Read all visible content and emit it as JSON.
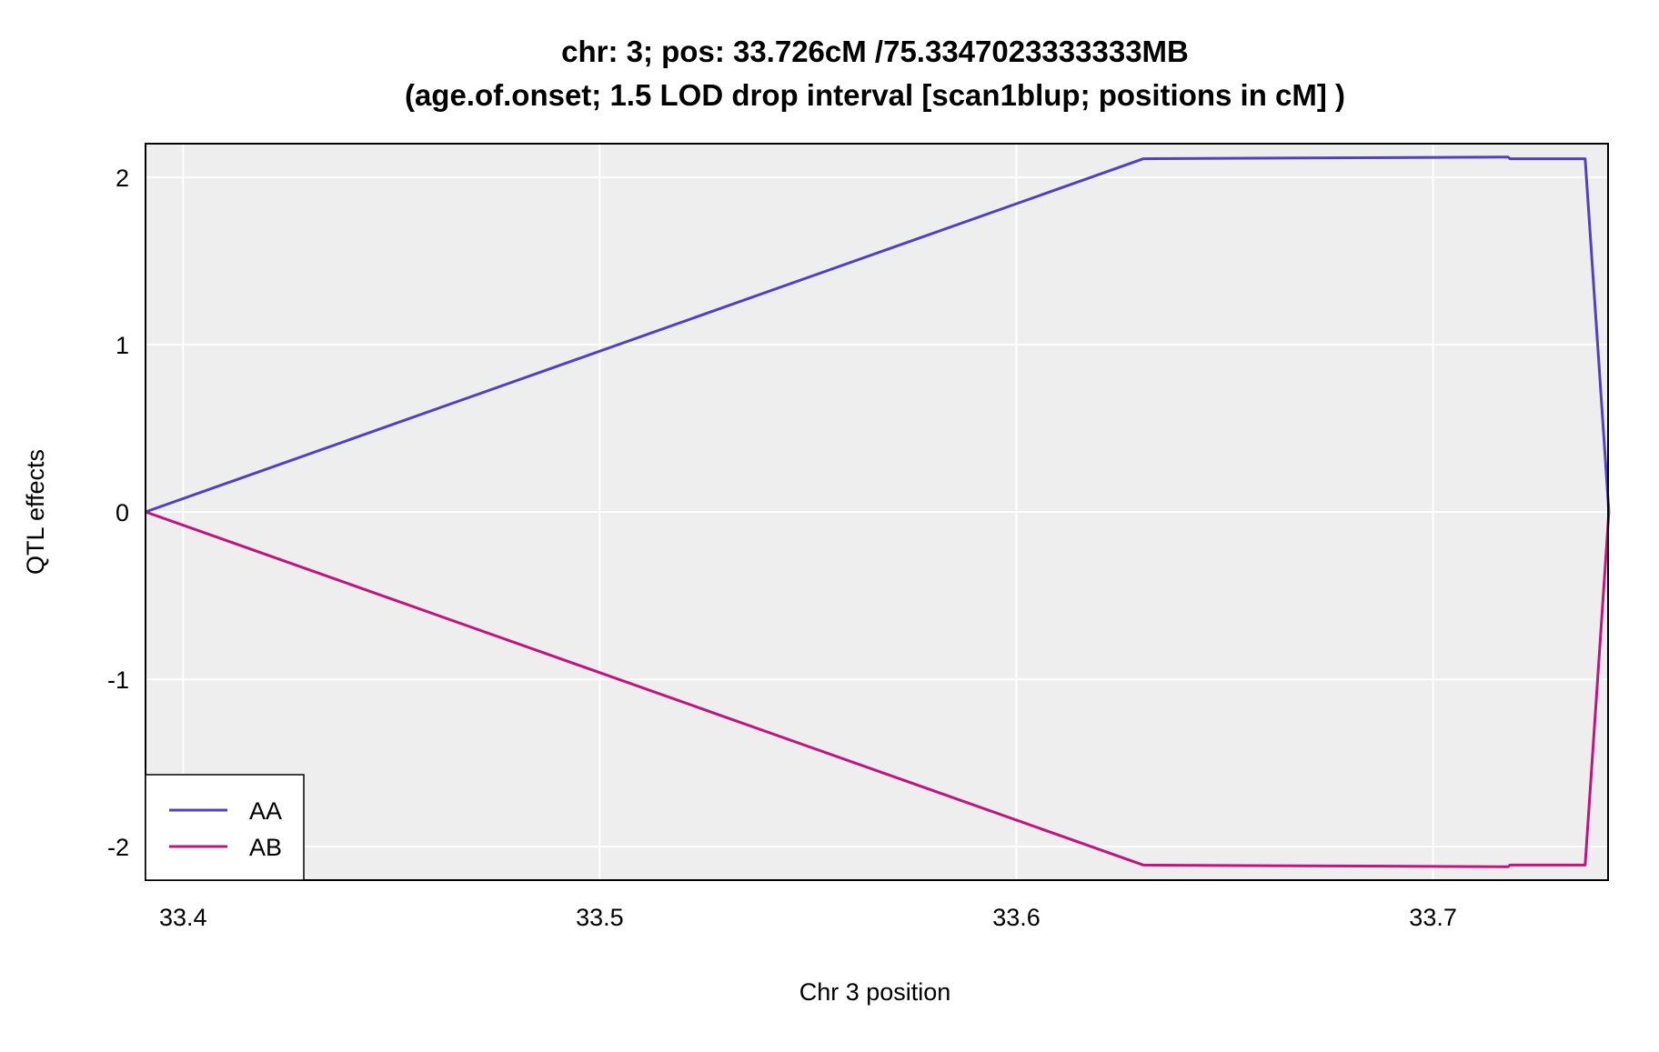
{
  "chart_data": {
    "type": "line",
    "title_line1": "chr: 3; pos: 33.726cM /75.3347023333333MB",
    "title_line2": "(age.of.onset; 1.5 LOD drop interval [scan1blup; positions in cM] )",
    "xlabel": "Chr 3 position",
    "ylabel": "QTL effects",
    "xlim": [
      33.391,
      33.742
    ],
    "ylim": [
      -2.2,
      2.2
    ],
    "xticks": [
      33.4,
      33.5,
      33.6,
      33.7
    ],
    "xtick_labels": [
      "33.4",
      "33.5",
      "33.6",
      "33.7"
    ],
    "yticks": [
      -2,
      -1,
      0,
      1,
      2
    ],
    "ytick_labels": [
      "-2",
      "-1",
      "0",
      "1",
      "2"
    ],
    "grid": true,
    "background": "#eeeeee",
    "legend_position": "bottom-left",
    "series": [
      {
        "name": "AA",
        "color": "#5240c0",
        "x": [
          33.391,
          33.6305,
          33.718,
          33.7185,
          33.7365,
          33.7422
        ],
        "y": [
          0,
          2.11,
          2.12,
          2.11,
          2.11,
          0
        ]
      },
      {
        "name": "AB",
        "color": "#c0147f",
        "x": [
          33.391,
          33.6305,
          33.718,
          33.7185,
          33.7365,
          33.7422
        ],
        "y": [
          0,
          -2.11,
          -2.12,
          -2.11,
          -2.11,
          0
        ]
      }
    ]
  }
}
